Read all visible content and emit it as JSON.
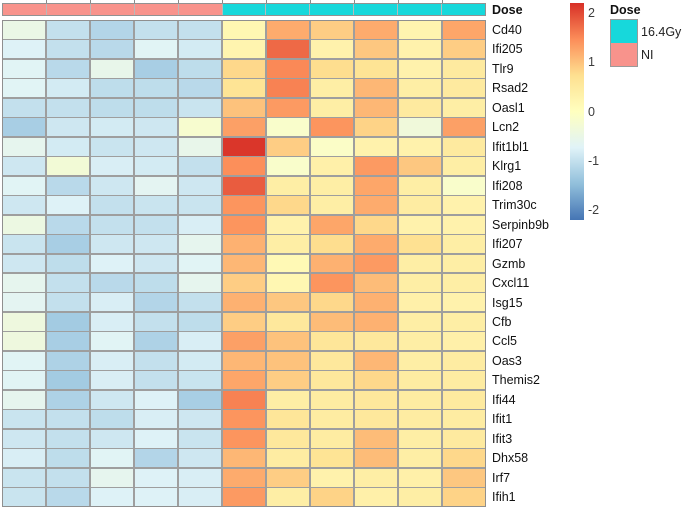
{
  "annotation_row": {
    "label": "Dose",
    "groups": [
      {
        "label": "NI",
        "color": "#F8938C",
        "columns": 5
      },
      {
        "label": "16.4Gy",
        "color": "#17D8DB",
        "columns": 6
      }
    ]
  },
  "legend": {
    "title": "Dose",
    "items": [
      {
        "label": "16.4Gy",
        "color": "#17D8DB"
      },
      {
        "label": "NI",
        "color": "#F8938C"
      }
    ]
  },
  "colorbar": {
    "ticks": [
      2,
      1,
      0,
      -1,
      -2
    ]
  },
  "colors": {
    "cell_border": "#9e9e9e",
    "annotation_ni": "#F8938C",
    "annotation_irradiated": "#17D8DB",
    "text": "#111111"
  },
  "chart_data": {
    "type": "heatmap",
    "title": "",
    "rows": [
      "Cd40",
      "Ifi205",
      "Tlr9",
      "Rsad2",
      "Oasl1",
      "Lcn2",
      "Ifit1bl1",
      "Klrg1",
      "Ifi208",
      "Trim30c",
      "Serpinb9b",
      "Ifi207",
      "Gzmb",
      "Cxcl11",
      "Isg15",
      "Cfb",
      "Ccl5",
      "Oas3",
      "Themis2",
      "Ifi44",
      "Ifit1",
      "Ifit3",
      "Dhx58",
      "Irf7",
      "Ifih1"
    ],
    "column_groups": [
      {
        "name": "NI",
        "columns": 5
      },
      {
        "name": "16.4Gy",
        "columns": 6
      }
    ],
    "value_domain": [
      -2.2,
      2.2
    ],
    "colorbar_ticks": [
      2,
      1,
      0,
      -1,
      -2
    ],
    "palette_low_to_high": [
      "#4575B4",
      "#91BFDB",
      "#E0F3F8",
      "#FFFFBF",
      "#FEE090",
      "#FC8D59",
      "#D73027"
    ],
    "legend_position": "right",
    "values": [
      [
        -0.5,
        -1.0,
        -1.15,
        -1.0,
        -1.0,
        0.2,
        1.2,
        0.9,
        1.2,
        0.25,
        1.25
      ],
      [
        -0.75,
        -1.0,
        -1.1,
        -0.7,
        -0.85,
        0.25,
        1.75,
        0.3,
        0.95,
        0.3,
        0.9
      ],
      [
        -0.7,
        -1.1,
        -0.55,
        -1.25,
        -1.05,
        0.8,
        1.5,
        0.75,
        0.65,
        0.3,
        0.5
      ],
      [
        -0.7,
        -0.85,
        -1.05,
        -1.05,
        -1.1,
        0.65,
        1.55,
        0.4,
        1.1,
        0.4,
        0.5
      ],
      [
        -1.0,
        -1.0,
        -1.05,
        -1.05,
        -0.95,
        1.0,
        1.35,
        0.4,
        1.1,
        0.5,
        0.4
      ],
      [
        -1.25,
        -0.9,
        -0.85,
        -0.9,
        -0.2,
        1.3,
        -0.15,
        1.4,
        0.85,
        -0.35,
        1.3
      ],
      [
        -0.6,
        -0.85,
        -0.95,
        -0.9,
        -0.55,
        2.15,
        0.9,
        -0.1,
        0.3,
        0.3,
        0.5
      ],
      [
        -0.9,
        -0.3,
        -0.8,
        -0.85,
        -1.0,
        1.45,
        -0.15,
        0.35,
        1.35,
        0.95,
        0.4
      ],
      [
        -0.7,
        -1.1,
        -0.9,
        -0.65,
        -0.9,
        1.85,
        0.4,
        0.4,
        1.25,
        0.4,
        -0.15
      ],
      [
        -0.9,
        -0.75,
        -1.0,
        -0.95,
        -0.95,
        1.4,
        0.8,
        0.4,
        1.2,
        0.45,
        0.3
      ],
      [
        -0.45,
        -1.1,
        -1.0,
        -1.0,
        -0.8,
        1.4,
        0.3,
        1.25,
        0.8,
        0.3,
        0.3
      ],
      [
        -0.95,
        -1.25,
        -0.9,
        -0.9,
        -0.6,
        1.15,
        0.4,
        0.75,
        1.2,
        0.7,
        0.4
      ],
      [
        -0.9,
        -1.05,
        -0.75,
        -0.9,
        -0.7,
        1.1,
        0.15,
        1.15,
        1.35,
        0.4,
        0.4
      ],
      [
        -0.6,
        -1.0,
        -1.1,
        -1.05,
        -0.6,
        0.9,
        0.2,
        1.4,
        1.05,
        0.4,
        0.4
      ],
      [
        -0.65,
        -1.0,
        -0.8,
        -1.15,
        -1.0,
        1.15,
        0.95,
        0.8,
        1.15,
        0.35,
        0.3
      ],
      [
        -0.4,
        -1.3,
        -0.8,
        -1.0,
        -1.05,
        0.9,
        0.55,
        1.05,
        1.15,
        0.4,
        0.4
      ],
      [
        -0.4,
        -1.25,
        -0.7,
        -1.2,
        -0.8,
        1.3,
        1.0,
        0.6,
        0.55,
        0.4,
        0.35
      ],
      [
        -0.7,
        -1.2,
        -0.8,
        -1.0,
        -0.85,
        1.1,
        1.0,
        0.55,
        1.1,
        0.4,
        0.45
      ],
      [
        -0.7,
        -1.3,
        -0.8,
        -1.0,
        -0.95,
        1.25,
        0.9,
        0.55,
        0.8,
        0.45,
        0.45
      ],
      [
        -0.6,
        -1.2,
        -0.9,
        -0.75,
        -1.25,
        1.55,
        0.4,
        0.45,
        0.55,
        0.45,
        0.5
      ],
      [
        -0.95,
        -1.0,
        -1.05,
        -0.8,
        -0.9,
        1.4,
        0.6,
        0.45,
        0.55,
        0.45,
        0.45
      ],
      [
        -0.9,
        -1.0,
        -0.9,
        -0.75,
        -0.95,
        1.4,
        0.55,
        0.45,
        1.05,
        0.4,
        0.5
      ],
      [
        -0.8,
        -1.05,
        -0.7,
        -1.15,
        -0.9,
        1.1,
        0.45,
        0.65,
        1.05,
        0.4,
        0.8
      ],
      [
        -0.95,
        -1.0,
        -0.6,
        -0.75,
        -0.8,
        1.2,
        0.9,
        0.3,
        0.4,
        0.35,
        0.95
      ],
      [
        -0.95,
        -1.1,
        -0.75,
        -0.75,
        -0.8,
        1.35,
        0.4,
        0.85,
        0.35,
        0.4,
        0.85
      ]
    ]
  }
}
